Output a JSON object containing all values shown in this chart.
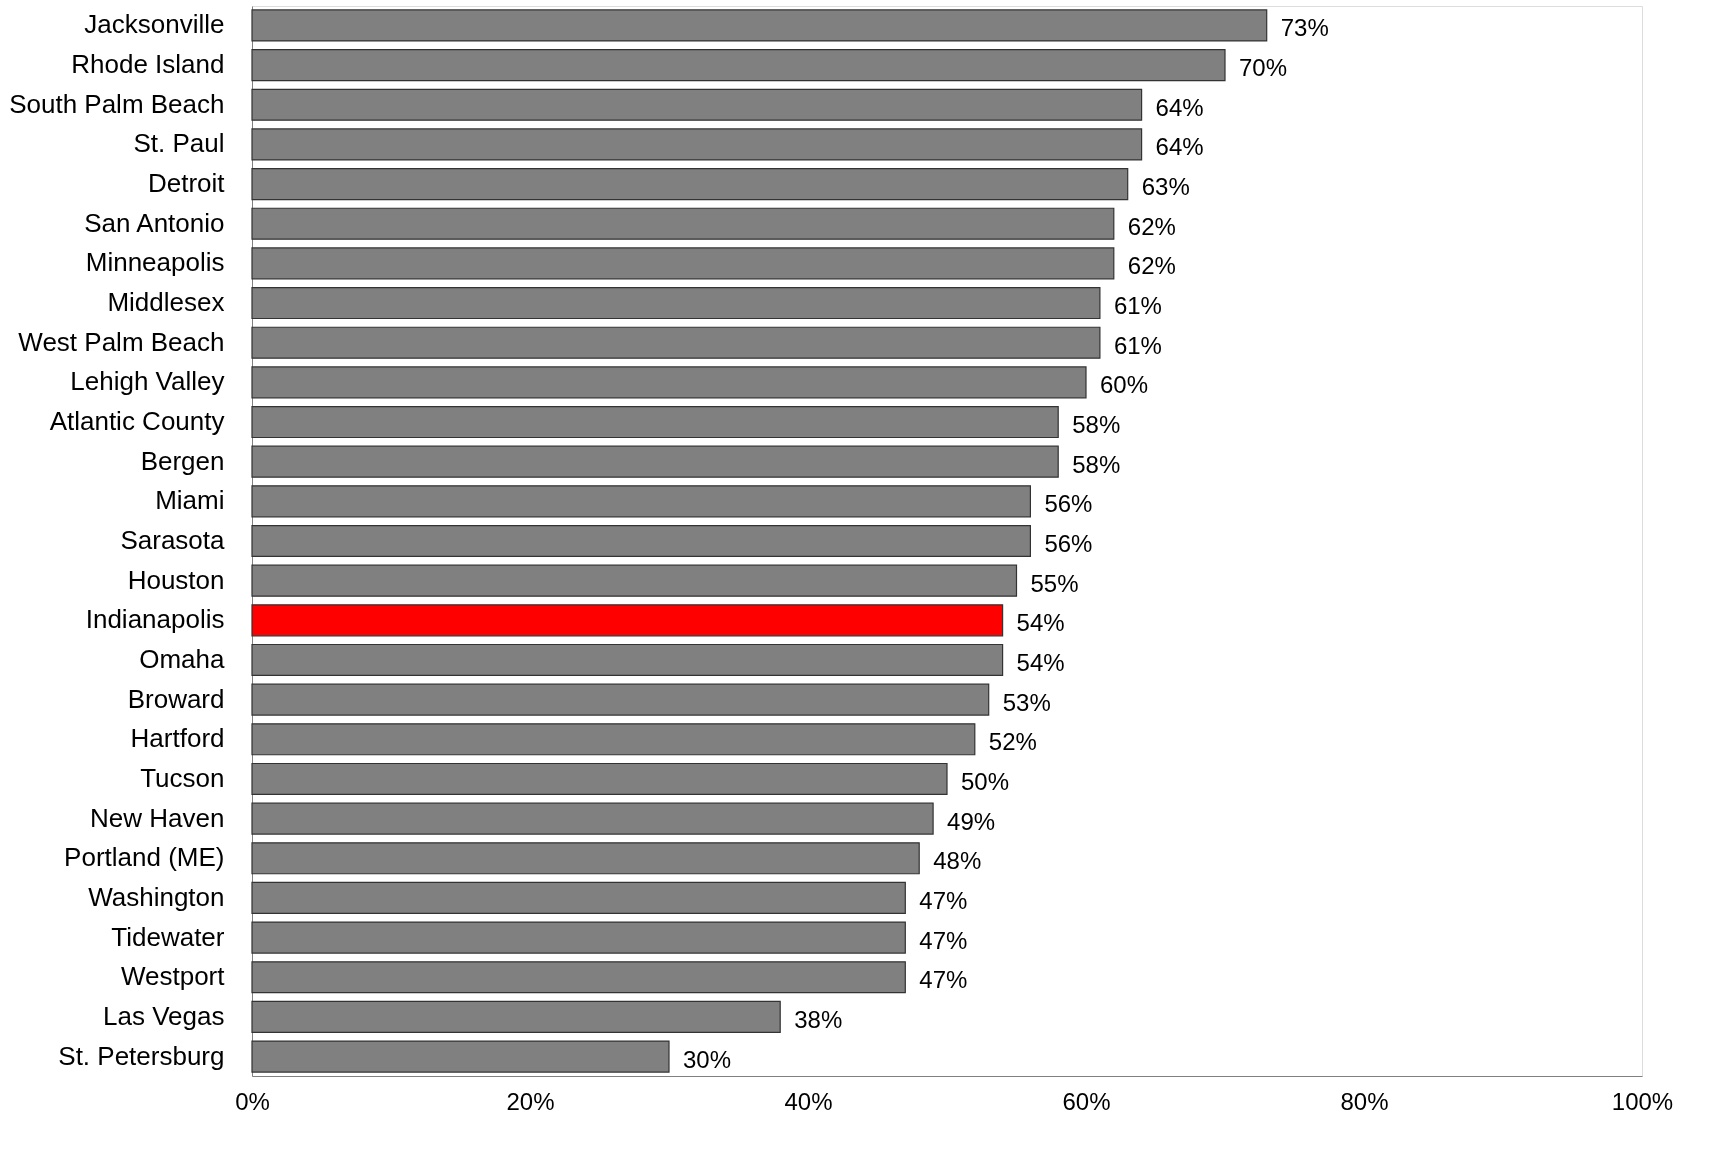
{
  "chart_data": {
    "type": "bar",
    "orientation": "horizontal",
    "categories": [
      "Jacksonville",
      "Rhode Island",
      "South Palm Beach",
      "St. Paul",
      "Detroit",
      "San Antonio",
      "Minneapolis",
      "Middlesex",
      "West Palm Beach",
      "Lehigh Valley",
      "Atlantic County",
      "Bergen",
      "Miami",
      "Sarasota",
      "Houston",
      "Indianapolis",
      "Omaha",
      "Broward",
      "Hartford",
      "Tucson",
      "New Haven",
      "Portland (ME)",
      "Washington",
      "Tidewater",
      "Westport",
      "Las Vegas",
      "St. Petersburg"
    ],
    "values": [
      73,
      70,
      64,
      64,
      63,
      62,
      62,
      61,
      61,
      60,
      58,
      58,
      56,
      56,
      55,
      54,
      54,
      53,
      52,
      50,
      49,
      48,
      47,
      47,
      47,
      38,
      30
    ],
    "colors": [
      "#808080",
      "#808080",
      "#808080",
      "#808080",
      "#808080",
      "#808080",
      "#808080",
      "#808080",
      "#808080",
      "#808080",
      "#808080",
      "#808080",
      "#808080",
      "#808080",
      "#808080",
      "#ff0000",
      "#808080",
      "#808080",
      "#808080",
      "#808080",
      "#808080",
      "#808080",
      "#808080",
      "#808080",
      "#808080",
      "#808080",
      "#808080"
    ],
    "value_labels": [
      "73%",
      "70%",
      "64%",
      "64%",
      "63%",
      "62%",
      "62%",
      "61%",
      "61%",
      "60%",
      "58%",
      "58%",
      "56%",
      "56%",
      "55%",
      "54%",
      "54%",
      "53%",
      "52%",
      "50%",
      "49%",
      "48%",
      "47%",
      "47%",
      "47%",
      "38%",
      "30%"
    ],
    "xlim": [
      0,
      100
    ],
    "xticks": [
      {
        "value": 0,
        "label": "0%"
      },
      {
        "value": 20,
        "label": "20%"
      },
      {
        "value": 40,
        "label": "40%"
      },
      {
        "value": 60,
        "label": "60%"
      },
      {
        "value": 80,
        "label": "80%"
      },
      {
        "value": 100,
        "label": "100%"
      }
    ],
    "grid": false
  }
}
